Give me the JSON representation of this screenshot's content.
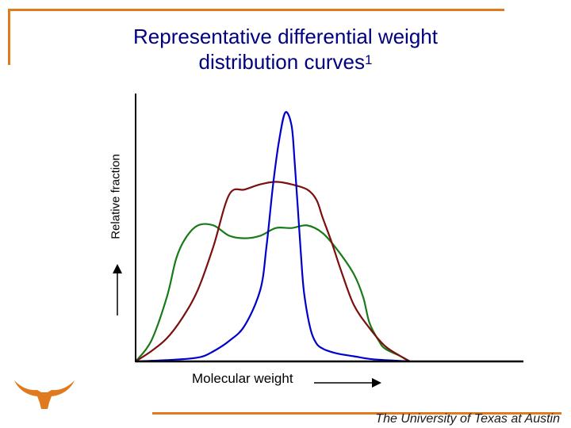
{
  "title_line1": "Representative differential weight",
  "title_line2": "distribution curves",
  "title_superscript": "1",
  "footer": "The University of Texas at Austin",
  "colors": {
    "accent": "#e07a1f",
    "title": "#000080",
    "series": [
      "#0000cc",
      "#7a1010",
      "#1a7a1a"
    ]
  },
  "logo_icon": "longhorn-icon",
  "chart_data": {
    "type": "line",
    "title": "Representative differential weight distribution curves",
    "xlabel": "Molecular weight",
    "ylabel": "Relative fraction",
    "axis_arrows": true,
    "ticks": false,
    "grid": false,
    "legend": false,
    "xlim": [
      0,
      100
    ],
    "ylim": [
      0,
      100
    ],
    "series": [
      {
        "color": "#0000cc",
        "x": [
          0,
          10,
          20,
          25,
          30,
          35,
          40,
          42,
          44,
          46,
          48,
          50,
          51,
          52,
          53,
          54,
          56,
          58,
          60,
          62,
          65,
          70,
          75,
          80,
          85,
          88
        ],
        "y": [
          0,
          0.5,
          1.5,
          4,
          8,
          14,
          28,
          45,
          68,
          86,
          97,
          92,
          78,
          60,
          42,
          27,
          13,
          7,
          5,
          4,
          3,
          2,
          1,
          0.5,
          0.2,
          0
        ]
      },
      {
        "color": "#7a1010",
        "x": [
          0,
          5,
          10,
          15,
          20,
          25,
          30,
          35,
          40,
          45,
          50,
          55,
          58,
          60,
          63,
          66,
          70,
          75,
          80,
          85,
          88
        ],
        "y": [
          0,
          4,
          9,
          17,
          28,
          45,
          65,
          67,
          69,
          70,
          69,
          67,
          63,
          56,
          46,
          35,
          22,
          13,
          6,
          2,
          0
        ]
      },
      {
        "color": "#1a7a1a",
        "x": [
          0,
          5,
          10,
          13,
          16,
          20,
          25,
          30,
          35,
          40,
          45,
          50,
          55,
          60,
          65,
          70,
          73,
          75,
          78,
          80,
          85,
          88
        ],
        "y": [
          0,
          8,
          25,
          40,
          48,
          53,
          53,
          49,
          48,
          49,
          52,
          52,
          53,
          50,
          43,
          34,
          25,
          15,
          8,
          5,
          2,
          0
        ]
      }
    ]
  }
}
